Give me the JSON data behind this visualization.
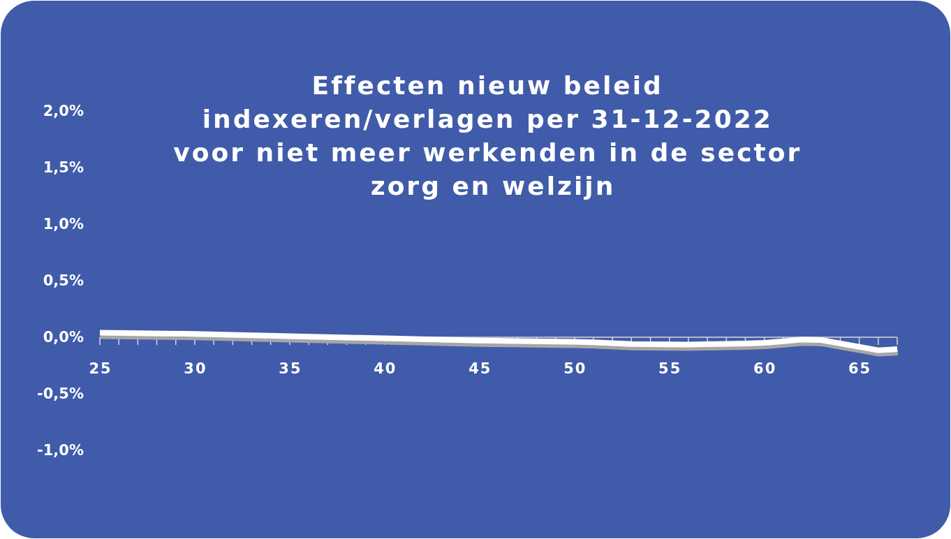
{
  "chart_data": {
    "type": "line",
    "title": "Effecten nieuw beleid indexeren/verlagen per 31-12-2022 voor niet meer werkenden in de sector zorg en welzijn",
    "x": [
      25,
      30,
      35,
      40,
      45,
      50,
      51,
      53,
      56,
      59,
      60,
      61,
      62,
      63,
      66,
      67
    ],
    "series": [
      {
        "color": "#ffffff",
        "values": [
          0.04,
          0.03,
          0.01,
          -0.01,
          -0.03,
          -0.04,
          -0.045,
          -0.06,
          -0.065,
          -0.055,
          -0.05,
          -0.035,
          -0.02,
          -0.025,
          -0.115,
          -0.105
        ]
      }
    ],
    "line_style": "solid",
    "xlim": [
      25,
      67
    ],
    "xticks": [
      25,
      {
        "value": 26,
        "label": null
      },
      {
        "value": 27,
        "label": null
      },
      {
        "value": 28,
        "label": null
      },
      {
        "value": 29,
        "label": null
      },
      30,
      {
        "value": 31,
        "label": null
      },
      {
        "value": 32,
        "label": null
      },
      {
        "value": 33,
        "label": null
      },
      {
        "value": 34,
        "label": null
      },
      35,
      {
        "value": 36,
        "label": null
      },
      {
        "value": 37,
        "label": null
      },
      {
        "value": 38,
        "label": null
      },
      {
        "value": 39,
        "label": null
      },
      40,
      {
        "value": 41,
        "label": null
      },
      {
        "value": 42,
        "label": null
      },
      {
        "value": 43,
        "label": null
      },
      {
        "value": 44,
        "label": null
      },
      45,
      {
        "value": 46,
        "label": null
      },
      {
        "value": 47,
        "label": null
      },
      {
        "value": 48,
        "label": null
      },
      {
        "value": 49,
        "label": null
      },
      50,
      {
        "value": 51,
        "label": null
      },
      {
        "value": 52,
        "label": null
      },
      {
        "value": 53,
        "label": null
      },
      {
        "value": 54,
        "label": null
      },
      55,
      {
        "value": 56,
        "label": null
      },
      {
        "value": 57,
        "label": null
      },
      {
        "value": 58,
        "label": null
      },
      {
        "value": 59,
        "label": null
      },
      60,
      {
        "value": 61,
        "label": null
      },
      {
        "value": 62,
        "label": null
      },
      {
        "value": 63,
        "label": null
      },
      {
        "value": 64,
        "label": null
      },
      65,
      {
        "value": 66,
        "label": null
      },
      {
        "value": 67,
        "label": null
      }
    ],
    "ylim": [
      -1.0,
      2.0
    ],
    "yticks": [
      {
        "value": -1.0,
        "label": "-1,0%"
      },
      {
        "value": -0.5,
        "label": "-0,5%"
      },
      {
        "value": 0.0,
        "label": "0,0%"
      },
      {
        "value": 0.5,
        "label": "0,5%"
      },
      {
        "value": 1.0,
        "label": "1,0%"
      },
      {
        "value": 1.5,
        "label": "1,5%"
      },
      {
        "value": 2.0,
        "label": "2,0%"
      }
    ]
  }
}
